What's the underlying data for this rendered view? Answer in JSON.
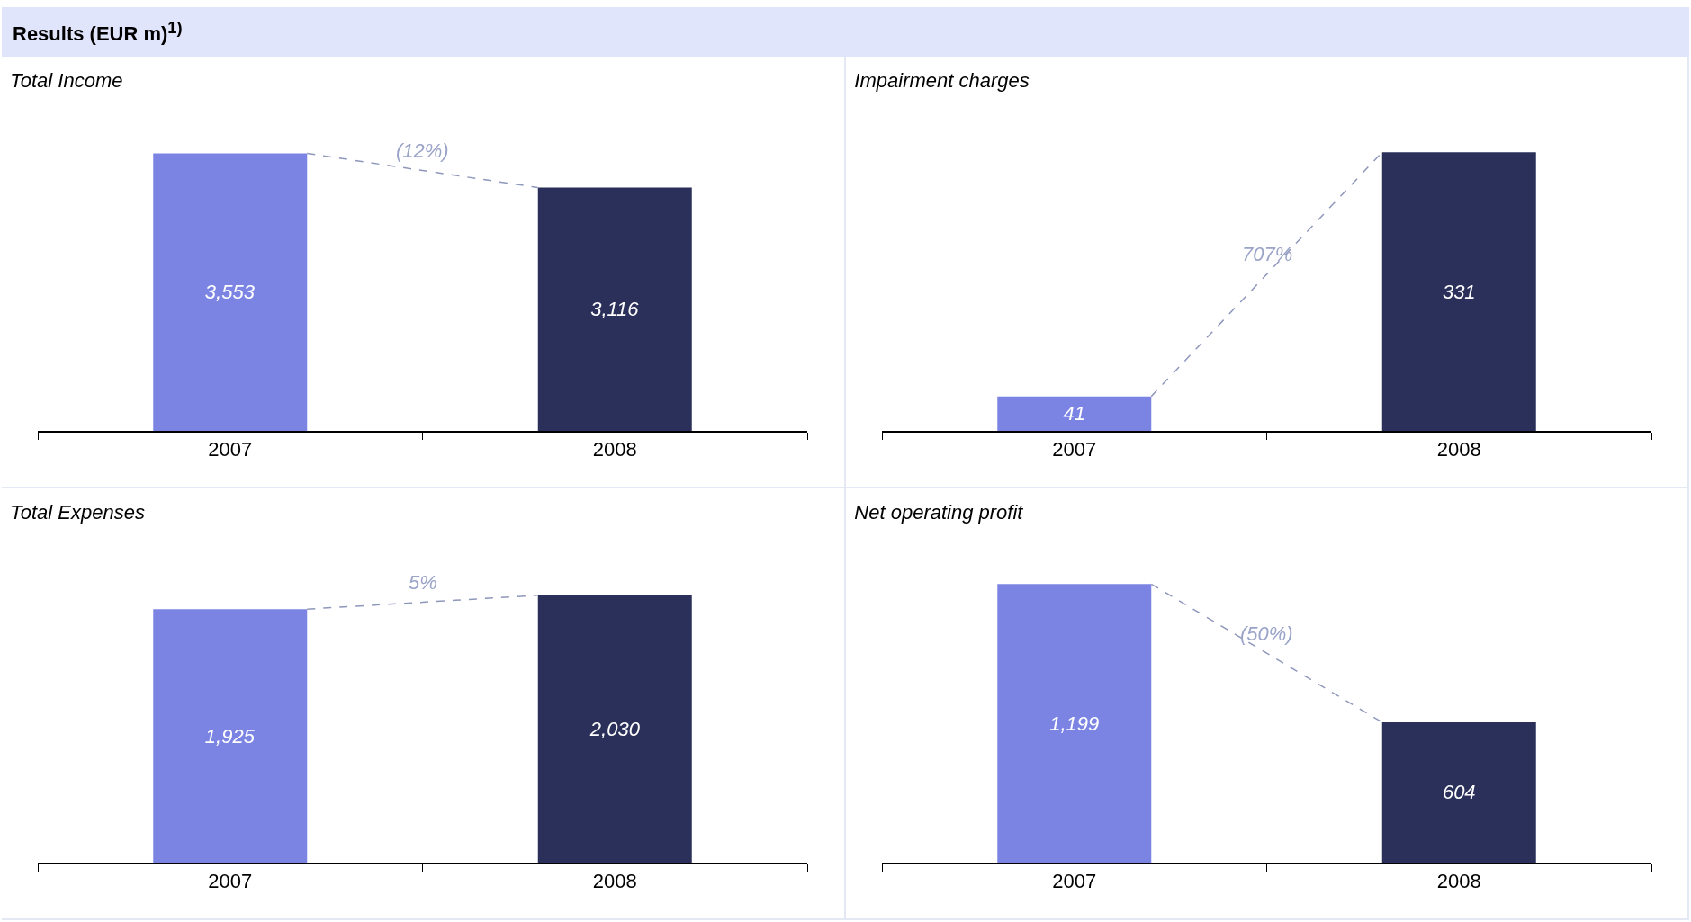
{
  "chart_data": [
    {
      "type": "other",
      "title": "Results (EUR m)$^{1)}$"
    },
    {
      "type": "bar",
      "title": "Total Income",
      "categories": [
        "2007",
        "2008"
      ],
      "values": [
        3553,
        3116
      ],
      "value_labels": [
        "3,553",
        "3,116"
      ],
      "colors": [
        "#7b84e3",
        "#2a3059"
      ],
      "annotations": [
        "(12%)"
      ]
    },
    {
      "type": "bar",
      "title": "Impairment charges",
      "categories": [
        "2007",
        "2008"
      ],
      "values": [
        41,
        331
      ],
      "value_labels": [
        "41",
        "331"
      ],
      "colors": [
        "#7b84e3",
        "#2a3059"
      ],
      "annotations": [
        "707%"
      ]
    },
    {
      "type": "bar",
      "title": "Total Expenses",
      "categories": [
        "2007",
        "2008"
      ],
      "values": [
        1925,
        2030
      ],
      "value_labels": [
        "1,925",
        "2,030"
      ],
      "colors": [
        "#7b84e3",
        "#2a3059"
      ],
      "annotations": [
        "5%"
      ]
    },
    {
      "type": "bar",
      "title": "Net operating profit",
      "categories": [
        "2007",
        "2008"
      ],
      "values": [
        1199,
        604
      ],
      "value_labels": [
        "1,199",
        "604"
      ],
      "colors": [
        "#7b84e3",
        "#2a3059"
      ],
      "annotations": [
        "(50%)"
      ]
    }
  ]
}
